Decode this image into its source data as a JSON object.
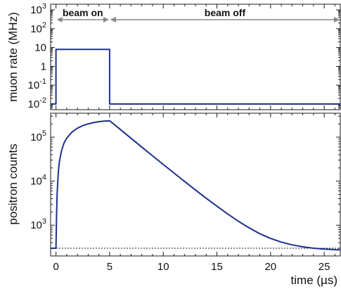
{
  "chart_data": [
    {
      "type": "line",
      "ylabel": "muon rate (MHz)",
      "xlim": [
        -0.5,
        26.5
      ],
      "ylim": [
        0.005,
        2000
      ],
      "yscale": "log",
      "y_tick_labels": [
        "10^{-2}",
        "10^{-1}",
        "1",
        "10",
        "10^{2}",
        "10^{3}"
      ],
      "y_tick_values": [
        0.01,
        0.1,
        1,
        10,
        100,
        1000
      ],
      "annotations": [
        {
          "label": "beam on",
          "x_range": [
            0,
            5
          ]
        },
        {
          "label": "beam off",
          "x_range": [
            5,
            26.5
          ]
        }
      ],
      "series": [
        {
          "x": [
            -0.5,
            0,
            0,
            5,
            5,
            26.5
          ],
          "y": [
            0.01,
            0.01,
            8,
            8,
            0.01,
            0.01
          ],
          "color": "#1f2f8f"
        }
      ]
    },
    {
      "type": "line",
      "xlabel": "time (µs)",
      "ylabel": "positron counts",
      "xlim": [
        -0.5,
        26.5
      ],
      "ylim": [
        200,
        350000
      ],
      "yscale": "log",
      "x_tick_labels": [
        "0",
        "5",
        "10",
        "15",
        "20",
        "25"
      ],
      "x_tick_values": [
        0,
        5,
        10,
        15,
        20,
        25
      ],
      "y_tick_labels": [
        "10^{3}",
        "10^{4}",
        "10^{5}"
      ],
      "y_tick_values": [
        1000,
        10000,
        100000
      ],
      "background_level": 300,
      "series": [
        {
          "x": [
            -0.5,
            0,
            0.05,
            0.1,
            0.2,
            0.3,
            0.5,
            0.75,
            1,
            1.5,
            2,
            2.5,
            3,
            3.5,
            4,
            4.5,
            5,
            6,
            7,
            8,
            9,
            10,
            11,
            12,
            13,
            14,
            15,
            16,
            17,
            18,
            19,
            20,
            21,
            22,
            23,
            24,
            25,
            26,
            26.5
          ],
          "y": [
            300,
            300,
            1500,
            5000,
            14000,
            26000,
            48000,
            74000,
            95000,
            131000,
            160000,
            183000,
            200000,
            214000,
            225000,
            232000,
            236000,
            149000,
            94000,
            59500,
            37700,
            24000,
            15300,
            9800,
            6300,
            4100,
            2700,
            1800,
            1230,
            870,
            640,
            500,
            413,
            358,
            323,
            300,
            287,
            279,
            276
          ],
          "color": "#1f2f8f"
        }
      ]
    }
  ]
}
